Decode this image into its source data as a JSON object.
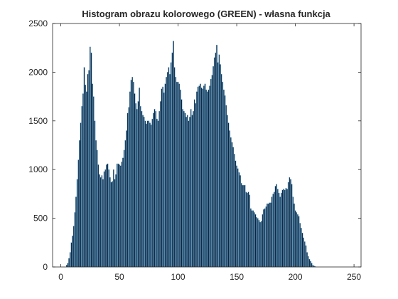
{
  "chart_data": {
    "type": "bar",
    "title": "Histogram obrazu kolorowego (GREEN) - własna funkcja",
    "xlabel": "",
    "ylabel": "",
    "xlim": [
      -7,
      256
    ],
    "ylim": [
      0,
      2500
    ],
    "xticks": [
      0,
      50,
      100,
      150,
      200,
      250
    ],
    "yticks": [
      0,
      500,
      1000,
      1500,
      2000,
      2500
    ],
    "grid": false,
    "legend": false,
    "bar_color": "#0b1f3a",
    "bar_edge_color": "#5fa8d3",
    "x_start": 0,
    "x_step": 1,
    "values": [
      0,
      0,
      0,
      0,
      0,
      20,
      40,
      90,
      150,
      250,
      320,
      420,
      560,
      720,
      900,
      1100,
      1300,
      1480,
      1650,
      1780,
      2050,
      1870,
      1800,
      1980,
      2020,
      2260,
      2200,
      1880,
      1750,
      1500,
      1300,
      1200,
      1050,
      950,
      920,
      940,
      900,
      980,
      1000,
      1050,
      1060,
      1000,
      920,
      870,
      880,
      1000,
      900,
      950,
      1060,
      1060,
      1050,
      1040,
      1080,
      1120,
      1200,
      1300,
      1400,
      1580,
      1640,
      1800,
      1920,
      1950,
      1900,
      1780,
      1680,
      1620,
      1700,
      1840,
      1650,
      1600,
      1560,
      1540,
      1500,
      1470,
      1500,
      1500,
      1480,
      1460,
      1520,
      1580,
      1620,
      1600,
      1520,
      1500,
      1600,
      1700,
      1830,
      1850,
      1790,
      1880,
      1950,
      2000,
      2050,
      1980,
      2100,
      2200,
      2320,
      2050,
      1950,
      1900,
      1900,
      1880,
      1820,
      1720,
      1620,
      1600,
      1580,
      1540,
      1560,
      1500,
      1540,
      1620,
      1560,
      1600,
      1720,
      1680,
      1800,
      1850,
      1860,
      1880,
      1840,
      1830,
      1860,
      1880,
      1820,
      1800,
      1820,
      1860,
      1930,
      1970,
      2060,
      2150,
      2200,
      2280,
      2100,
      2180,
      2080,
      1980,
      1900,
      1820,
      1760,
      1660,
      1560,
      1480,
      1400,
      1330,
      1280,
      1230,
      1160,
      1090,
      1040,
      1010,
      970,
      940,
      860,
      840,
      840,
      840,
      770,
      760,
      770,
      740,
      600,
      580,
      580,
      560,
      540,
      510,
      500,
      480,
      460,
      470,
      540,
      590,
      600,
      620,
      650,
      650,
      660,
      660,
      720,
      750,
      770,
      830,
      850,
      800,
      760,
      720,
      760,
      790,
      800,
      790,
      810,
      800,
      870,
      920,
      900,
      850,
      720,
      650,
      580,
      560,
      540,
      520,
      450,
      400,
      350,
      300,
      260,
      220,
      150,
      110,
      80,
      60,
      40,
      20,
      10,
      5
    ]
  }
}
